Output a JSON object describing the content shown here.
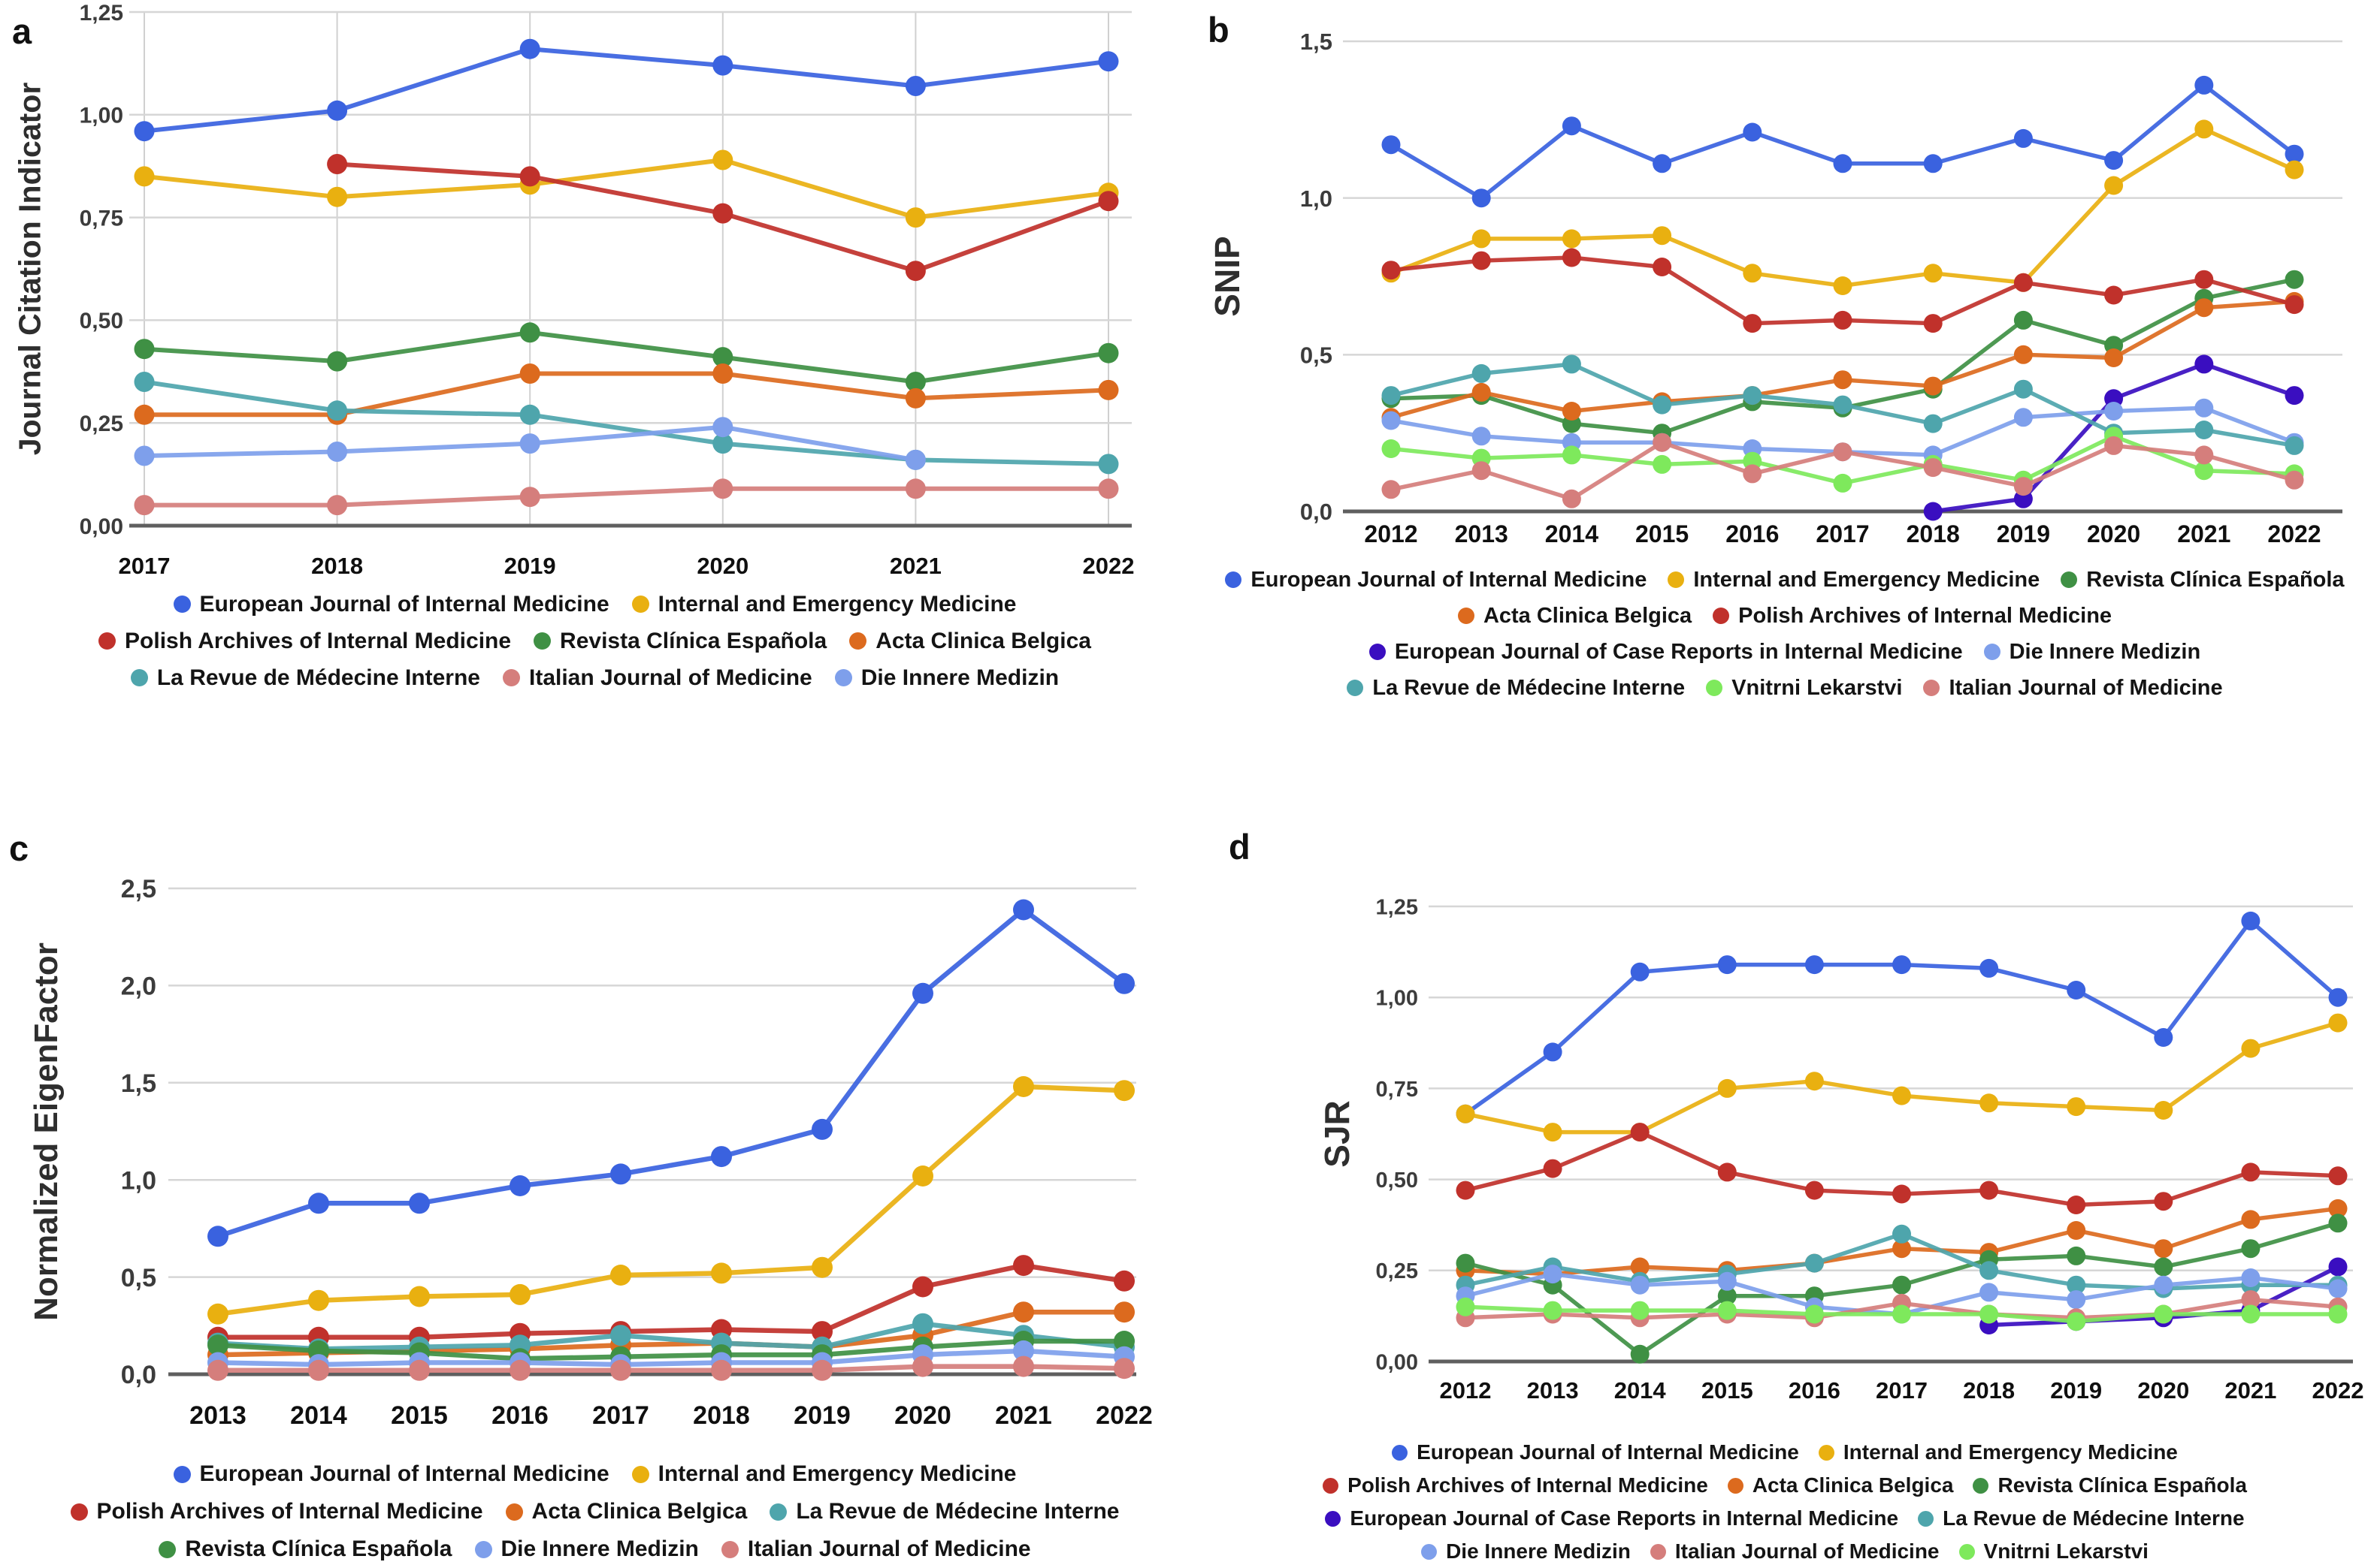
{
  "figure": {
    "background_color": "#ffffff",
    "gridline_color": "#d6d6d6",
    "axis_color": "#5f5f5f",
    "description_panels": [
      "a",
      "b",
      "c",
      "d"
    ]
  },
  "palette": {
    "blue": "#3a62df",
    "yellow": "#e9b010",
    "red": "#c0312b",
    "green": "#3f9044",
    "orange": "#dc6a1e",
    "teal": "#4ea5ac",
    "lightblue": "#7e9feb",
    "pink": "#d57e7c",
    "lightgreen": "#7ee95c",
    "purple": "#3a0ec0"
  },
  "chart_data": [
    {
      "type": "line",
      "panel_letter": "a",
      "ylabel": "Journal Citation Indicator",
      "x": [
        2017,
        2018,
        2019,
        2020,
        2021,
        2022
      ],
      "ylim": [
        0,
        1.25
      ],
      "grid": {
        "horizontal": true,
        "vertical": true
      },
      "legend_position": "bottom",
      "yticks": [
        {
          "v": 0,
          "label": "0,00"
        },
        {
          "v": 0.25,
          "label": "0,25"
        },
        {
          "v": 0.5,
          "label": "0,50"
        },
        {
          "v": 0.75,
          "label": "0,75"
        },
        {
          "v": 1.0,
          "label": "1,00"
        },
        {
          "v": 1.25,
          "label": "1,25"
        }
      ],
      "series": [
        {
          "name": "European Journal of Internal Medicine",
          "color_key": "blue",
          "values": [
            0.96,
            1.01,
            1.16,
            1.12,
            1.07,
            1.13
          ]
        },
        {
          "name": "Internal and Emergency Medicine",
          "color_key": "yellow",
          "values": [
            0.85,
            0.8,
            0.83,
            0.89,
            0.75,
            0.81
          ]
        },
        {
          "name": "Polish Archives of Internal Medicine",
          "color_key": "red",
          "values": [
            null,
            0.88,
            0.85,
            0.76,
            0.62,
            0.79
          ]
        },
        {
          "name": "Revista Clínica Española",
          "color_key": "green",
          "values": [
            0.43,
            0.4,
            0.47,
            0.41,
            0.35,
            0.42
          ]
        },
        {
          "name": "Acta Clinica Belgica",
          "color_key": "orange",
          "values": [
            0.27,
            0.27,
            0.37,
            0.37,
            0.31,
            0.33
          ]
        },
        {
          "name": "La Revue de Médecine Interne",
          "color_key": "teal",
          "values": [
            0.35,
            0.28,
            0.27,
            0.2,
            0.16,
            0.15
          ]
        },
        {
          "name": "Italian Journal of Medicine",
          "color_key": "pink",
          "values": [
            0.05,
            0.05,
            0.07,
            0.09,
            0.09,
            0.09
          ]
        },
        {
          "name": "Die Innere Medizin",
          "color_key": "lightblue",
          "values": [
            0.17,
            0.18,
            0.2,
            0.24,
            0.16,
            null
          ]
        }
      ],
      "legend_rows": [
        [
          0,
          1
        ],
        [
          2,
          3,
          4
        ],
        [
          5,
          6,
          7
        ]
      ]
    },
    {
      "type": "line",
      "panel_letter": "b",
      "ylabel": "SNIP",
      "x": [
        2012,
        2013,
        2014,
        2015,
        2016,
        2017,
        2018,
        2019,
        2020,
        2021,
        2022
      ],
      "ylim": [
        0,
        1.5
      ],
      "grid": {
        "horizontal": true,
        "vertical": false
      },
      "legend_position": "bottom",
      "yticks": [
        {
          "v": 0,
          "label": "0,0"
        },
        {
          "v": 0.5,
          "label": "0,5"
        },
        {
          "v": 1.0,
          "label": "1,0"
        },
        {
          "v": 1.5,
          "label": "1,5"
        }
      ],
      "series": [
        {
          "name": "European Journal of Internal Medicine",
          "color_key": "blue",
          "values": [
            1.17,
            1.0,
            1.23,
            1.11,
            1.21,
            1.11,
            1.11,
            1.19,
            1.12,
            1.36,
            1.14
          ]
        },
        {
          "name": "Internal and Emergency Medicine",
          "color_key": "yellow",
          "values": [
            0.76,
            0.87,
            0.87,
            0.88,
            0.76,
            0.72,
            0.76,
            0.73,
            1.04,
            1.22,
            1.09
          ]
        },
        {
          "name": "Revista Clínica Española",
          "color_key": "green",
          "values": [
            0.36,
            0.37,
            0.28,
            0.25,
            0.35,
            0.33,
            0.39,
            0.61,
            0.53,
            0.68,
            0.74
          ]
        },
        {
          "name": "Acta Clinica Belgica",
          "color_key": "orange",
          "values": [
            0.3,
            0.38,
            0.32,
            0.35,
            0.37,
            0.42,
            0.4,
            0.5,
            0.49,
            0.65,
            0.67
          ]
        },
        {
          "name": "Polish Archives of Internal Medicine",
          "color_key": "red",
          "values": [
            0.77,
            0.8,
            0.81,
            0.78,
            0.6,
            0.61,
            0.6,
            0.73,
            0.69,
            0.74,
            0.66
          ]
        },
        {
          "name": "European Journal of Case Reports in Internal Medicine",
          "color_key": "purple",
          "values": [
            null,
            null,
            null,
            null,
            null,
            null,
            0.0,
            0.04,
            0.36,
            0.47,
            0.37
          ]
        },
        {
          "name": "Die Innere Medizin",
          "color_key": "lightblue",
          "values": [
            0.29,
            0.24,
            0.22,
            0.22,
            0.2,
            0.19,
            0.18,
            0.3,
            0.32,
            0.33,
            0.22
          ]
        },
        {
          "name": "La Revue de Médecine Interne",
          "color_key": "teal",
          "values": [
            0.37,
            0.44,
            0.47,
            0.34,
            0.37,
            0.34,
            0.28,
            0.39,
            0.25,
            0.26,
            0.21
          ]
        },
        {
          "name": "Vnitrni Lekarstvi",
          "color_key": "lightgreen",
          "values": [
            0.2,
            0.17,
            0.18,
            0.15,
            0.16,
            0.09,
            0.15,
            0.1,
            0.24,
            0.13,
            0.12
          ]
        },
        {
          "name": "Italian Journal of Medicine",
          "color_key": "pink",
          "values": [
            0.07,
            0.13,
            0.04,
            0.22,
            0.12,
            0.19,
            0.14,
            0.08,
            0.21,
            0.18,
            0.1
          ]
        }
      ],
      "legend_rows": [
        [
          0,
          1,
          2
        ],
        [
          3,
          4
        ],
        [
          5,
          6
        ],
        [
          7,
          8,
          9
        ]
      ]
    },
    {
      "type": "line",
      "panel_letter": "c",
      "ylabel": "Normalized EigenFactor",
      "x": [
        2013,
        2014,
        2015,
        2016,
        2017,
        2018,
        2019,
        2020,
        2021,
        2022
      ],
      "ylim": [
        0,
        2.5
      ],
      "grid": {
        "horizontal": true,
        "vertical": false
      },
      "legend_position": "bottom",
      "yticks": [
        {
          "v": 0,
          "label": "0,0"
        },
        {
          "v": 0.5,
          "label": "0,5"
        },
        {
          "v": 1.0,
          "label": "1,0"
        },
        {
          "v": 1.5,
          "label": "1,5"
        },
        {
          "v": 2.0,
          "label": "2,0"
        },
        {
          "v": 2.5,
          "label": "2,5"
        }
      ],
      "series": [
        {
          "name": "European Journal of Internal Medicine",
          "color_key": "blue",
          "values": [
            0.71,
            0.88,
            0.88,
            0.97,
            1.03,
            1.12,
            1.26,
            1.96,
            2.39,
            2.01
          ]
        },
        {
          "name": "Internal and Emergency Medicine",
          "color_key": "yellow",
          "values": [
            0.31,
            0.38,
            0.4,
            0.41,
            0.51,
            0.52,
            0.55,
            1.02,
            1.48,
            1.46
          ]
        },
        {
          "name": "Polish Archives of Internal Medicine",
          "color_key": "red",
          "values": [
            0.19,
            0.19,
            0.19,
            0.21,
            0.22,
            0.23,
            0.22,
            0.45,
            0.56,
            0.48
          ]
        },
        {
          "name": "Acta Clinica Belgica",
          "color_key": "orange",
          "values": [
            0.1,
            0.11,
            0.12,
            0.13,
            0.15,
            0.16,
            0.14,
            0.2,
            0.32,
            0.32
          ]
        },
        {
          "name": "La Revue de Médecine Interne",
          "color_key": "teal",
          "values": [
            0.16,
            0.13,
            0.14,
            0.15,
            0.2,
            0.16,
            0.14,
            0.26,
            0.2,
            0.14
          ]
        },
        {
          "name": "Revista Clínica Española",
          "color_key": "green",
          "values": [
            0.15,
            0.12,
            0.11,
            0.08,
            0.09,
            0.1,
            0.1,
            0.14,
            0.17,
            0.17
          ]
        },
        {
          "name": "Die Innere Medizin",
          "color_key": "lightblue",
          "values": [
            0.06,
            0.05,
            0.06,
            0.06,
            0.05,
            0.06,
            0.06,
            0.1,
            0.12,
            0.09
          ]
        },
        {
          "name": "Italian Journal of Medicine",
          "color_key": "pink",
          "values": [
            0.02,
            0.02,
            0.02,
            0.02,
            0.02,
            0.02,
            0.02,
            0.04,
            0.04,
            0.03
          ]
        }
      ],
      "legend_rows": [
        [
          0,
          1
        ],
        [
          2,
          3,
          4
        ],
        [
          5,
          6,
          7
        ]
      ]
    },
    {
      "type": "line",
      "panel_letter": "d",
      "ylabel": "SJR",
      "x": [
        2012,
        2013,
        2014,
        2015,
        2016,
        2017,
        2018,
        2019,
        2020,
        2021,
        2022
      ],
      "ylim": [
        0,
        1.25
      ],
      "grid": {
        "horizontal": true,
        "vertical": false
      },
      "legend_position": "bottom",
      "yticks": [
        {
          "v": 0,
          "label": "0,00"
        },
        {
          "v": 0.25,
          "label": "0,25"
        },
        {
          "v": 0.5,
          "label": "0,50"
        },
        {
          "v": 0.75,
          "label": "0,75"
        },
        {
          "v": 1.0,
          "label": "1,00"
        },
        {
          "v": 1.25,
          "label": "1,25"
        }
      ],
      "series": [
        {
          "name": "European Journal of Internal Medicine",
          "color_key": "blue",
          "values": [
            0.68,
            0.85,
            1.07,
            1.09,
            1.09,
            1.09,
            1.08,
            1.02,
            0.89,
            1.21,
            1.0
          ]
        },
        {
          "name": "Internal and Emergency Medicine",
          "color_key": "yellow",
          "values": [
            0.68,
            0.63,
            0.63,
            0.75,
            0.77,
            0.73,
            0.71,
            0.7,
            0.69,
            0.86,
            0.93
          ]
        },
        {
          "name": "Polish Archives of Internal Medicine",
          "color_key": "red",
          "values": [
            0.47,
            0.53,
            0.63,
            0.52,
            0.47,
            0.46,
            0.47,
            0.43,
            0.44,
            0.52,
            0.51
          ]
        },
        {
          "name": "Acta Clinica Belgica",
          "color_key": "orange",
          "values": [
            0.25,
            0.24,
            0.26,
            0.25,
            0.27,
            0.31,
            0.3,
            0.36,
            0.31,
            0.39,
            0.42
          ]
        },
        {
          "name": "Revista Clínica Española",
          "color_key": "green",
          "values": [
            0.27,
            0.21,
            0.02,
            0.18,
            0.18,
            0.21,
            0.28,
            0.29,
            0.26,
            0.31,
            0.38
          ]
        },
        {
          "name": "European Journal of Case Reports in Internal Medicine",
          "color_key": "purple",
          "values": [
            null,
            null,
            null,
            null,
            null,
            null,
            0.1,
            0.11,
            0.12,
            0.14,
            0.26
          ]
        },
        {
          "name": "La Revue de Médecine Interne",
          "color_key": "teal",
          "values": [
            0.21,
            0.26,
            0.22,
            0.24,
            0.27,
            0.35,
            0.25,
            0.21,
            0.2,
            0.21,
            0.21
          ]
        },
        {
          "name": "Die Innere Medizin",
          "color_key": "lightblue",
          "values": [
            0.18,
            0.24,
            0.21,
            0.22,
            0.15,
            0.13,
            0.19,
            0.17,
            0.21,
            0.23,
            0.2
          ]
        },
        {
          "name": "Italian Journal of Medicine",
          "color_key": "pink",
          "values": [
            0.12,
            0.13,
            0.12,
            0.13,
            0.12,
            0.16,
            0.13,
            0.12,
            0.13,
            0.17,
            0.15
          ]
        },
        {
          "name": "Vnitrni Lekarstvi",
          "color_key": "lightgreen",
          "values": [
            0.15,
            0.14,
            0.14,
            0.14,
            0.13,
            0.13,
            0.13,
            0.11,
            0.13,
            0.13,
            0.13
          ]
        }
      ],
      "legend_rows": [
        [
          0,
          1
        ],
        [
          2,
          3,
          4
        ],
        [
          5,
          6
        ],
        [
          7,
          8,
          9
        ]
      ]
    }
  ]
}
